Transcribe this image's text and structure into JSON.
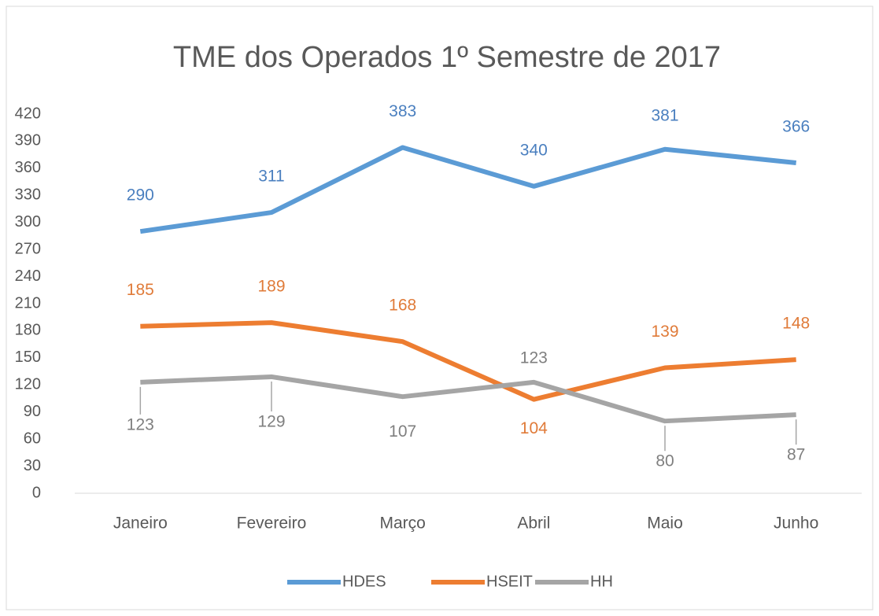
{
  "chart_data": {
    "type": "line",
    "title": "TME dos Operados 1º Semestre de 2017",
    "categories": [
      "Janeiro",
      "Fevereiro",
      "Março",
      "Abril",
      "Maio",
      "Junho"
    ],
    "series": [
      {
        "name": "HDES",
        "color": "#5b9bd5",
        "values": [
          290,
          311,
          383,
          340,
          381,
          366
        ]
      },
      {
        "name": "HSEIT",
        "color": "#ed7d31",
        "values": [
          185,
          189,
          168,
          104,
          139,
          148
        ]
      },
      {
        "name": "HH",
        "color": "#a5a5a5",
        "values": [
          123,
          129,
          107,
          123,
          80,
          87
        ]
      }
    ],
    "ylim": [
      0,
      420
    ],
    "yticks": [
      0,
      30,
      60,
      90,
      120,
      150,
      180,
      210,
      240,
      270,
      300,
      330,
      360,
      390,
      420
    ],
    "grid": false,
    "legend": "bottom"
  }
}
